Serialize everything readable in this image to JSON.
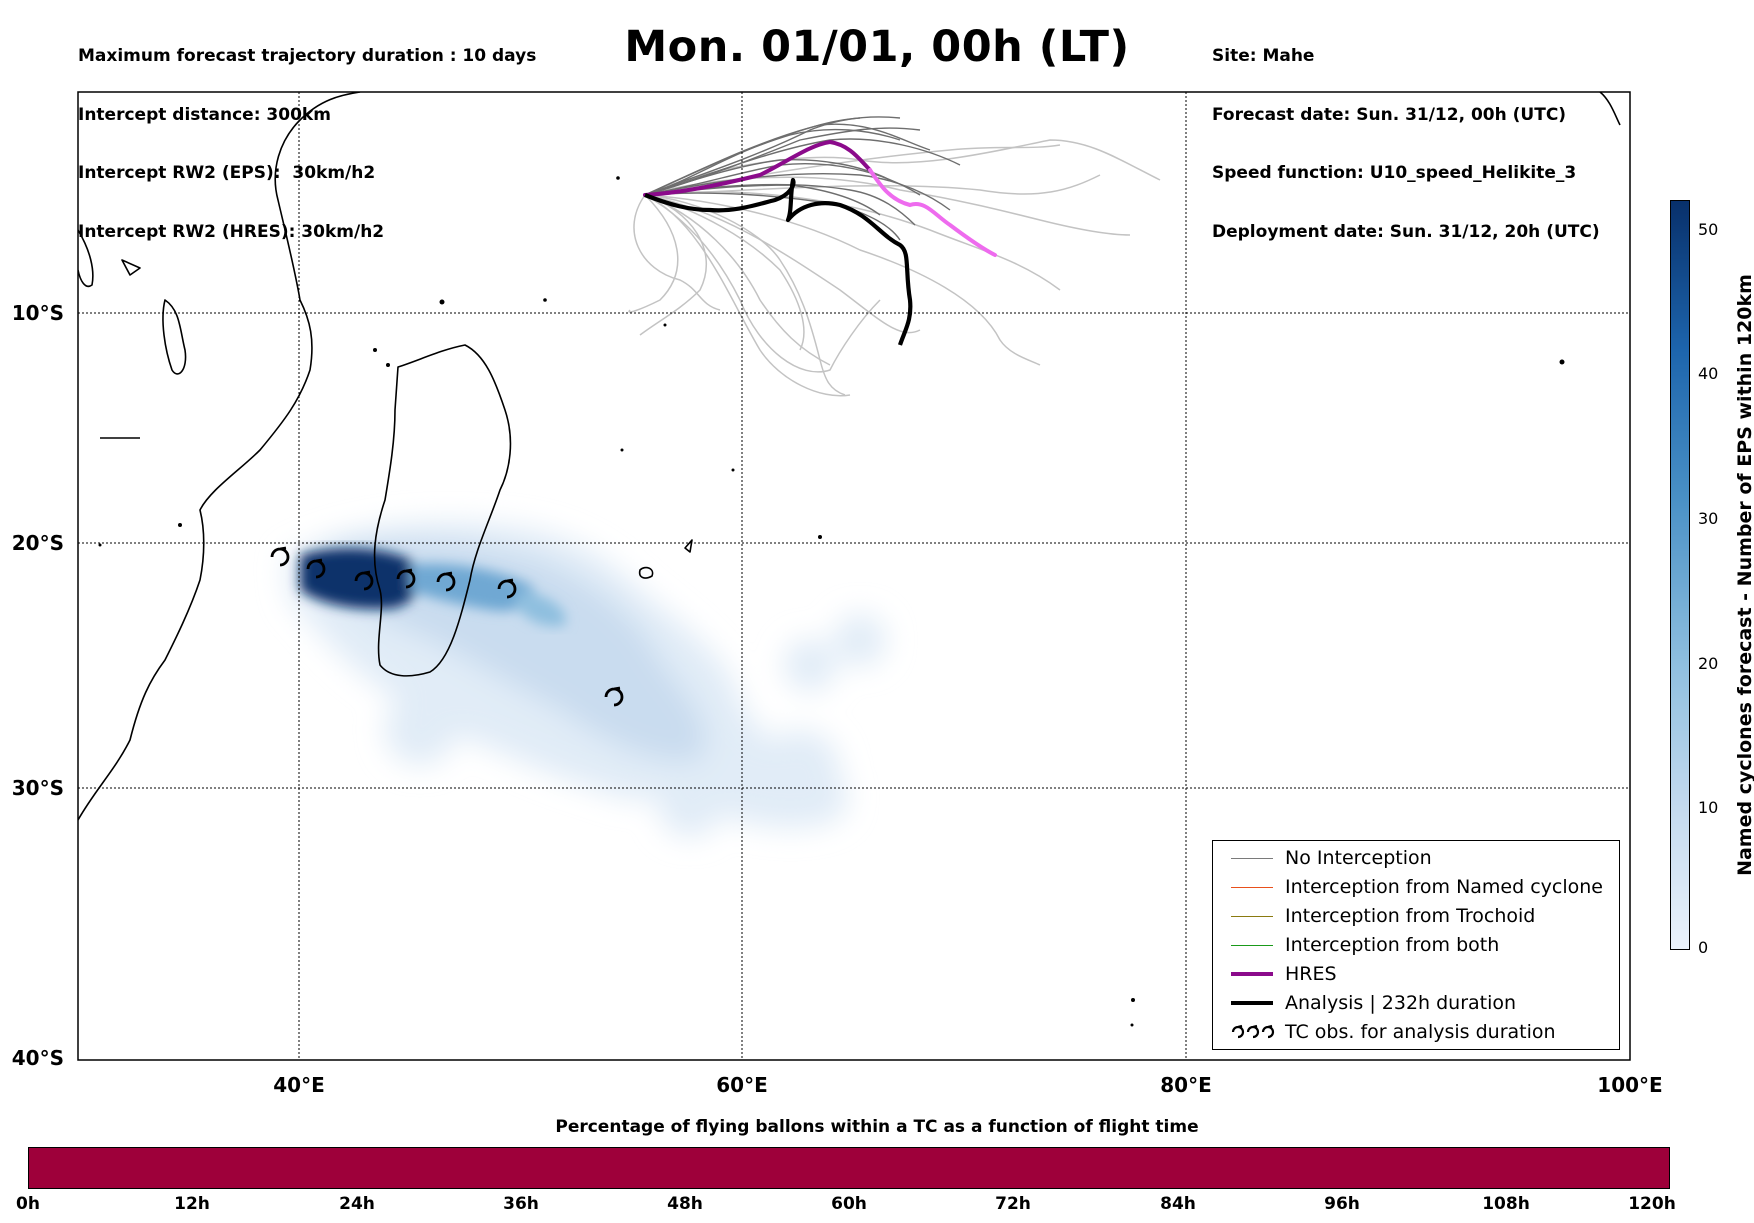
{
  "header": {
    "left_lines": [
      "Maximum forecast trajectory duration : 10 days",
      "Intercept distance: 300km",
      "Intercept RW2 (EPS):  30km/h2",
      "Intercept RW2 (HRES): 30km/h2"
    ],
    "right_lines": [
      "Site: Mahe",
      "Forecast date: Sun. 31/12, 00h (UTC)",
      "Speed function: U10_speed_Helikite_3",
      "Deployment date: Sun. 31/12, 20h (UTC)"
    ],
    "title": "Mon. 01/01, 00h (LT)"
  },
  "map": {
    "lat_ticks": [
      "10°S",
      "20°S",
      "30°S",
      "40°S"
    ],
    "lon_ticks": [
      "40°E",
      "60°E",
      "80°E",
      "100°E"
    ],
    "gridlines": "dotted"
  },
  "legend": {
    "items": [
      {
        "label": "No Interception",
        "color": "#7a7a7a"
      },
      {
        "label": "Interception from Named cyclone",
        "color": "#e8501c"
      },
      {
        "label": "Interception from Trochoid",
        "color": "#8a7a10"
      },
      {
        "label": "Interception from both",
        "color": "#1a9a1a"
      },
      {
        "label": "HRES",
        "color": "#8b0a8b"
      },
      {
        "label": "Analysis | 232h duration",
        "color": "#000000"
      },
      {
        "label": "TC obs. for analysis duration",
        "icon": "cyclone-icon"
      }
    ]
  },
  "colorbar": {
    "label": "Named cyclones forecast - Number of EPS within 120km",
    "ticks": [
      "0",
      "10",
      "20",
      "30",
      "40",
      "50"
    ]
  },
  "time_bar": {
    "title": "Percentage of flying ballons within a TC as a function of flight time",
    "ticks": [
      "0h",
      "12h",
      "24h",
      "36h",
      "48h",
      "60h",
      "72h",
      "84h",
      "96h",
      "108h",
      "120h"
    ],
    "color": "#9e003a"
  }
}
